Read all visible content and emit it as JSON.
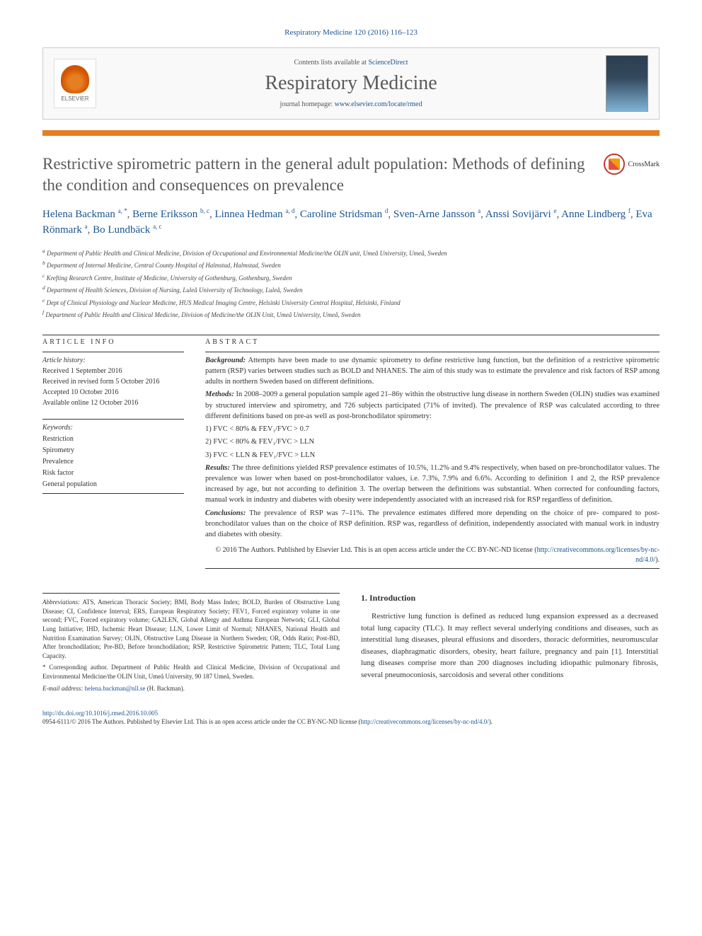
{
  "journal_ref": "Respiratory Medicine 120 (2016) 116–123",
  "header": {
    "contents_text": "Contents lists available at ",
    "contents_link": "ScienceDirect",
    "journal_name": "Respiratory Medicine",
    "homepage_label": "journal homepage: ",
    "homepage_url": "www.elsevier.com/locate/rmed",
    "publisher": "ELSEVIER"
  },
  "crossmark": "CrossMark",
  "title": "Restrictive spirometric pattern in the general adult population: Methods of defining the condition and consequences on prevalence",
  "authors": [
    {
      "name": "Helena Backman",
      "aff": "a, *"
    },
    {
      "name": "Berne Eriksson",
      "aff": "b, c"
    },
    {
      "name": "Linnea Hedman",
      "aff": "a, d"
    },
    {
      "name": "Caroline Stridsman",
      "aff": "d"
    },
    {
      "name": "Sven-Arne Jansson",
      "aff": "a"
    },
    {
      "name": "Anssi Sovijärvi",
      "aff": "e"
    },
    {
      "name": "Anne Lindberg",
      "aff": "f"
    },
    {
      "name": "Eva Rönmark",
      "aff": "a"
    },
    {
      "name": "Bo Lundbäck",
      "aff": "a, c"
    }
  ],
  "affiliations": [
    {
      "key": "a",
      "text": "Department of Public Health and Clinical Medicine, Division of Occupational and Environmental Medicine/the OLIN unit, Umeå University, Umeå, Sweden"
    },
    {
      "key": "b",
      "text": "Department of Internal Medicine, Central County Hospital of Halmstad, Halmstad, Sweden"
    },
    {
      "key": "c",
      "text": "Krefting Research Centre, Institute of Medicine, University of Gothenburg, Gothenburg, Sweden"
    },
    {
      "key": "d",
      "text": "Department of Health Sciences, Division of Nursing, Luleå University of Technology, Luleå, Sweden"
    },
    {
      "key": "e",
      "text": "Dept of Clinical Physiology and Nuclear Medicine, HUS Medical Imaging Centre, Helsinki University Central Hospital, Helsinki, Finland"
    },
    {
      "key": "f",
      "text": "Department of Public Health and Clinical Medicine, Division of Medicine/the OLIN Unit, Umeå University, Umeå, Sweden"
    }
  ],
  "article_info": {
    "heading": "ARTICLE INFO",
    "history_label": "Article history:",
    "received": "Received 1 September 2016",
    "revised": "Received in revised form 5 October 2016",
    "accepted": "Accepted 10 October 2016",
    "online": "Available online 12 October 2016",
    "keywords_label": "Keywords:",
    "keywords": [
      "Restriction",
      "Spirometry",
      "Prevalence",
      "Risk factor",
      "General population"
    ]
  },
  "abstract": {
    "heading": "ABSTRACT",
    "background_label": "Background:",
    "background": "Attempts have been made to use dynamic spirometry to define restrictive lung function, but the definition of a restrictive spirometric pattern (RSP) varies between studies such as BOLD and NHANES. The aim of this study was to estimate the prevalence and risk factors of RSP among adults in northern Sweden based on different definitions.",
    "methods_label": "Methods:",
    "methods": "In 2008–2009 a general population sample aged 21–86y within the obstructive lung disease in northern Sweden (OLIN) studies was examined by structured interview and spirometry, and 726 subjects participated (71% of invited). The prevalence of RSP was calculated according to three different definitions based on pre-as well as post-bronchodilator spirometry:",
    "def1": "1) FVC < 80% & FEV₁/FVC > 0.7",
    "def2": "2) FVC < 80% & FEV₁/FVC > LLN",
    "def3": "3) FVC < LLN & FEV₁/FVC > LLN",
    "results_label": "Results:",
    "results": "The three definitions yielded RSP prevalence estimates of 10.5%, 11.2% and 9.4% respectively, when based on pre-bronchodilator values. The prevalence was lower when based on post-bronchodilator values, i.e. 7.3%, 7.9% and 6.6%. According to definition 1 and 2, the RSP prevalence increased by age, but not according to definition 3. The overlap between the definitions was substantial. When corrected for confounding factors, manual work in industry and diabetes with obesity were independently associated with an increased risk for RSP regardless of definition.",
    "conclusions_label": "Conclusions:",
    "conclusions": "The prevalence of RSP was 7–11%. The prevalence estimates differed more depending on the choice of pre- compared to post-bronchodilator values than on the choice of RSP definition. RSP was, regardless of definition, independently associated with manual work in industry and diabetes with obesity.",
    "copyright": "© 2016 The Authors. Published by Elsevier Ltd. This is an open access article under the CC BY-NC-ND license (",
    "license_url": "http://creativecommons.org/licenses/by-nc-nd/4.0/",
    "copyright_end": ")."
  },
  "footnotes": {
    "abbrev_label": "Abbreviations:",
    "abbrev": "ATS, American Thoracic Society; BMI, Body Mass Index; BOLD, Burden of Obstructive Lung Disease; CI, Confidence Interval; ERS, European Respiratory Society; FEV1, Forced expiratory volume in one second; FVC, Forced expiratory volume; GA2LEN, Global Allergy and Asthma European Network; GLI, Global Lung Initiative; IHD, Ischemic Heart Disease; LLN, Lower Limit of Normal; NHANES, National Health and Nutrition Examination Survey; OLIN, Obstructive Lung Disease in Northern Sweden; OR, Odds Ratio; Post-BD, After bronchodilation; Pre-BD, Before bronchodilation; RSP, Restrictive Spirometric Pattern; TLC, Total Lung Capacity.",
    "corr_label": "*",
    "corr": "Corresponding author. Department of Public Health and Clinical Medicine, Division of Occupational and Environmental Medicine/the OLIN Unit, Umeå University, 90 187 Umeå, Sweden.",
    "email_label": "E-mail address:",
    "email": "helena.backman@nll.se",
    "email_name": "(H. Backman)."
  },
  "intro": {
    "heading": "1. Introduction",
    "text": "Restrictive lung function is defined as reduced lung expansion expressed as a decreased total lung capacity (TLC). It may reflect several underlying conditions and diseases, such as interstitial lung diseases, pleural effusions and disorders, thoracic deformities, neuromuscular diseases, diaphragmatic disorders, obesity, heart failure, pregnancy and pain [1]. Interstitial lung diseases comprise more than 200 diagnoses including idiopathic pulmonary fibrosis, several pneumoconiosis, sarcoidosis and several other conditions"
  },
  "footer": {
    "doi": "http://dx.doi.org/10.1016/j.rmed.2016.10.005",
    "issn_line": "0954-6111/© 2016 The Authors. Published by Elsevier Ltd. This is an open access article under the CC BY-NC-ND license (",
    "license_url": "http://creativecommons.org/licenses/by-nc-nd/4.0/",
    "end": ")."
  }
}
